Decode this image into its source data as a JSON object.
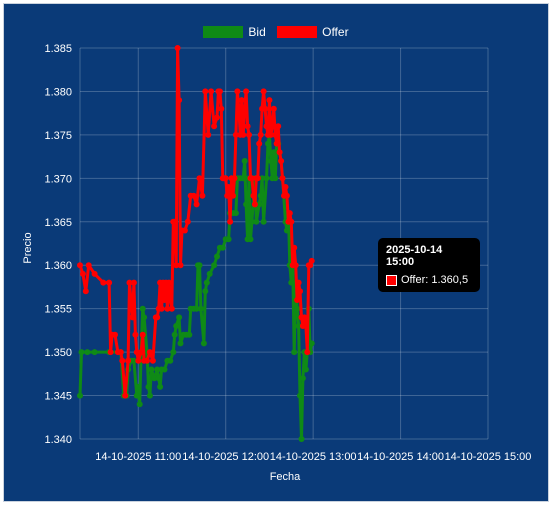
{
  "legend": {
    "bid_label": "Bid",
    "offer_label": "Offer"
  },
  "tooltip": {
    "title": "2025-10-14 15:00",
    "label": "Offer: 1.360,5"
  },
  "colors": {
    "background": "#0a3a78",
    "bid": "#0f8a16",
    "offer": "#ff0000",
    "grid": "rgba(255,255,255,0.22)"
  },
  "chart_data": {
    "type": "line",
    "xlabel": "Fecha",
    "ylabel": "Precio",
    "ylim": [
      1.34,
      1.385
    ],
    "yticks": [
      "1.340",
      "1.345",
      "1.350",
      "1.355",
      "1.360",
      "1.365",
      "1.370",
      "1.375",
      "1.380",
      "1.385"
    ],
    "xlim": [
      "2025-10-14 10:20",
      "2025-10-14 15:00"
    ],
    "xticks": [
      "14-10-2025 11:00",
      "14-10-2025 12:00",
      "14-10-2025 13:00",
      "14-10-2025 14:00",
      "14-10-2025 15:00"
    ],
    "grid": true,
    "legend_position": "top",
    "series": [
      {
        "name": "Bid",
        "points": [
          [
            "10:20",
            1.345
          ],
          [
            "10:21",
            1.35
          ],
          [
            "10:25",
            1.35
          ],
          [
            "10:30",
            1.35
          ],
          [
            "10:40",
            1.35
          ],
          [
            "10:48",
            1.35
          ],
          [
            "10:50",
            1.345
          ],
          [
            "10:52",
            1.345
          ],
          [
            "10:53",
            1.348
          ],
          [
            "10:55",
            1.349
          ],
          [
            "10:57",
            1.349
          ],
          [
            "10:59",
            1.345
          ],
          [
            "11:00",
            1.346
          ],
          [
            "11:01",
            1.344
          ],
          [
            "11:02",
            1.35
          ],
          [
            "11:03",
            1.355
          ],
          [
            "11:04",
            1.354
          ],
          [
            "11:06",
            1.35
          ],
          [
            "11:07",
            1.346
          ],
          [
            "11:08",
            1.345
          ],
          [
            "11:09",
            1.348
          ],
          [
            "11:11",
            1.347
          ],
          [
            "11:13",
            1.348
          ],
          [
            "11:14",
            1.347
          ],
          [
            "11:15",
            1.346
          ],
          [
            "11:16",
            1.348
          ],
          [
            "11:18",
            1.348
          ],
          [
            "11:20",
            1.349
          ],
          [
            "11:22",
            1.349
          ],
          [
            "11:24",
            1.35
          ],
          [
            "11:25",
            1.352
          ],
          [
            "11:26",
            1.353
          ],
          [
            "11:28",
            1.354
          ],
          [
            "11:29",
            1.351
          ],
          [
            "11:31",
            1.352
          ],
          [
            "11:33",
            1.352
          ],
          [
            "11:35",
            1.352
          ],
          [
            "11:36",
            1.355
          ],
          [
            "11:38",
            1.355
          ],
          [
            "11:40",
            1.355
          ],
          [
            "11:41",
            1.36
          ],
          [
            "11:42",
            1.36
          ],
          [
            "11:43",
            1.355
          ],
          [
            "11:45",
            1.351
          ],
          [
            "11:46",
            1.357
          ],
          [
            "11:47",
            1.358
          ],
          [
            "11:49",
            1.359
          ],
          [
            "11:52",
            1.36
          ],
          [
            "11:54",
            1.361
          ],
          [
            "11:56",
            1.362
          ],
          [
            "11:58",
            1.362
          ],
          [
            "12:00",
            1.363
          ],
          [
            "12:02",
            1.363
          ],
          [
            "12:03",
            1.366
          ],
          [
            "12:05",
            1.366
          ],
          [
            "12:07",
            1.366
          ],
          [
            "12:08",
            1.37
          ],
          [
            "12:10",
            1.37
          ],
          [
            "12:12",
            1.37
          ],
          [
            "12:13",
            1.372
          ],
          [
            "12:14",
            1.367
          ],
          [
            "12:15",
            1.363
          ],
          [
            "12:16",
            1.37
          ],
          [
            "12:17",
            1.363
          ],
          [
            "12:18",
            1.365
          ],
          [
            "12:20",
            1.37
          ],
          [
            "12:21",
            1.365
          ],
          [
            "12:23",
            1.367
          ],
          [
            "12:24",
            1.368
          ],
          [
            "12:25",
            1.37
          ],
          [
            "12:26",
            1.365
          ],
          [
            "12:28",
            1.37
          ],
          [
            "12:29",
            1.374
          ],
          [
            "12:30",
            1.375
          ],
          [
            "12:31",
            1.372
          ],
          [
            "12:32",
            1.37
          ],
          [
            "12:33",
            1.373
          ],
          [
            "12:34",
            1.37
          ],
          [
            "12:35",
            1.374
          ],
          [
            "12:36",
            1.374
          ],
          [
            "12:37",
            1.373
          ],
          [
            "12:38",
            1.372
          ],
          [
            "12:39",
            1.37
          ],
          [
            "12:41",
            1.365
          ],
          [
            "12:42",
            1.364
          ],
          [
            "12:43",
            1.366
          ],
          [
            "12:44",
            1.36
          ],
          [
            "12:45",
            1.358
          ],
          [
            "12:46",
            1.36
          ],
          [
            "12:47",
            1.35
          ],
          [
            "12:48",
            1.358
          ],
          [
            "12:49",
            1.355
          ],
          [
            "12:50",
            1.353
          ],
          [
            "12:51",
            1.345
          ],
          [
            "12:52",
            1.34
          ],
          [
            "12:53",
            1.347
          ],
          [
            "12:54",
            1.35
          ],
          [
            "12:55",
            1.348
          ],
          [
            "12:56",
            1.35
          ],
          [
            "12:57",
            1.355
          ],
          [
            "12:58",
            1.35
          ],
          [
            "12:59",
            1.351
          ]
        ]
      },
      {
        "name": "Offer",
        "points": [
          [
            "10:20",
            1.36
          ],
          [
            "10:22",
            1.359
          ],
          [
            "10:24",
            1.357
          ],
          [
            "10:26",
            1.36
          ],
          [
            "10:30",
            1.359
          ],
          [
            "10:36",
            1.358
          ],
          [
            "10:40",
            1.358
          ],
          [
            "10:41",
            1.35
          ],
          [
            "10:42",
            1.352
          ],
          [
            "10:44",
            1.352
          ],
          [
            "10:46",
            1.35
          ],
          [
            "10:48",
            1.35
          ],
          [
            "10:49",
            1.349
          ],
          [
            "10:51",
            1.345
          ],
          [
            "10:53",
            1.349
          ],
          [
            "10:54",
            1.358
          ],
          [
            "10:55",
            1.356
          ],
          [
            "10:56",
            1.354
          ],
          [
            "10:57",
            1.358
          ],
          [
            "10:58",
            1.352
          ],
          [
            "10:59",
            1.35
          ],
          [
            "11:00",
            1.349
          ],
          [
            "11:02",
            1.35
          ],
          [
            "11:03",
            1.352
          ],
          [
            "11:04",
            1.349
          ],
          [
            "11:06",
            1.349
          ],
          [
            "11:08",
            1.35
          ],
          [
            "11:10",
            1.349
          ],
          [
            "11:12",
            1.354
          ],
          [
            "11:13",
            1.354
          ],
          [
            "11:14",
            1.355
          ],
          [
            "11:15",
            1.358
          ],
          [
            "11:16",
            1.355
          ],
          [
            "11:17",
            1.358
          ],
          [
            "11:18",
            1.356
          ],
          [
            "11:19",
            1.358
          ],
          [
            "11:20",
            1.355
          ],
          [
            "11:21",
            1.358
          ],
          [
            "11:22",
            1.356
          ],
          [
            "11:23",
            1.355
          ],
          [
            "11:24",
            1.365
          ],
          [
            "11:25",
            1.365
          ],
          [
            "11:26",
            1.36
          ],
          [
            "11:27",
            1.385
          ],
          [
            "11:28",
            1.379
          ],
          [
            "11:29",
            1.36
          ],
          [
            "11:30",
            1.364
          ],
          [
            "11:32",
            1.364
          ],
          [
            "11:34",
            1.365
          ],
          [
            "11:36",
            1.368
          ],
          [
            "11:38",
            1.368
          ],
          [
            "11:40",
            1.367
          ],
          [
            "11:42",
            1.37
          ],
          [
            "11:44",
            1.368
          ],
          [
            "11:46",
            1.38
          ],
          [
            "11:48",
            1.375
          ],
          [
            "11:50",
            1.38
          ],
          [
            "11:52",
            1.376
          ],
          [
            "11:54",
            1.377
          ],
          [
            "11:55",
            1.38
          ],
          [
            "11:56",
            1.38
          ],
          [
            "11:57",
            1.378
          ],
          [
            "11:58",
            1.37
          ],
          [
            "11:59",
            1.37
          ],
          [
            "12:00",
            1.37
          ],
          [
            "12:01",
            1.368
          ],
          [
            "12:02",
            1.369
          ],
          [
            "12:03",
            1.365
          ],
          [
            "12:04",
            1.37
          ],
          [
            "12:05",
            1.368
          ],
          [
            "12:06",
            1.37
          ],
          [
            "12:07",
            1.375
          ],
          [
            "12:08",
            1.38
          ],
          [
            "12:09",
            1.378
          ],
          [
            "12:10",
            1.375
          ],
          [
            "12:11",
            1.379
          ],
          [
            "12:12",
            1.375
          ],
          [
            "12:13",
            1.378
          ],
          [
            "12:14",
            1.38
          ],
          [
            "12:15",
            1.376
          ],
          [
            "12:16",
            1.375
          ],
          [
            "12:17",
            1.37
          ],
          [
            "12:18",
            1.37
          ],
          [
            "12:19",
            1.368
          ],
          [
            "12:20",
            1.367
          ],
          [
            "12:21",
            1.37
          ],
          [
            "12:22",
            1.37
          ],
          [
            "12:23",
            1.374
          ],
          [
            "12:24",
            1.375
          ],
          [
            "12:25",
            1.378
          ],
          [
            "12:26",
            1.38
          ],
          [
            "12:27",
            1.378
          ],
          [
            "12:28",
            1.376
          ],
          [
            "12:29",
            1.375
          ],
          [
            "12:30",
            1.379
          ],
          [
            "12:31",
            1.375
          ],
          [
            "12:32",
            1.376
          ],
          [
            "12:33",
            1.378
          ],
          [
            "12:34",
            1.375
          ],
          [
            "12:35",
            1.374
          ],
          [
            "12:36",
            1.376
          ],
          [
            "12:37",
            1.373
          ],
          [
            "12:38",
            1.372
          ],
          [
            "12:39",
            1.37
          ],
          [
            "12:40",
            1.368
          ],
          [
            "12:41",
            1.369
          ],
          [
            "12:42",
            1.368
          ],
          [
            "12:43",
            1.365
          ],
          [
            "12:44",
            1.366
          ],
          [
            "12:45",
            1.365
          ],
          [
            "12:46",
            1.36
          ],
          [
            "12:47",
            1.362
          ],
          [
            "12:48",
            1.36
          ],
          [
            "12:49",
            1.356
          ],
          [
            "12:50",
            1.358
          ],
          [
            "12:51",
            1.357
          ],
          [
            "12:52",
            1.354
          ],
          [
            "12:53",
            1.353
          ],
          [
            "12:54",
            1.354
          ],
          [
            "12:55",
            1.353
          ],
          [
            "12:56",
            1.35
          ],
          [
            "12:57",
            1.36
          ],
          [
            "12:58",
            1.36
          ],
          [
            "12:59",
            1.3605
          ]
        ]
      }
    ]
  }
}
